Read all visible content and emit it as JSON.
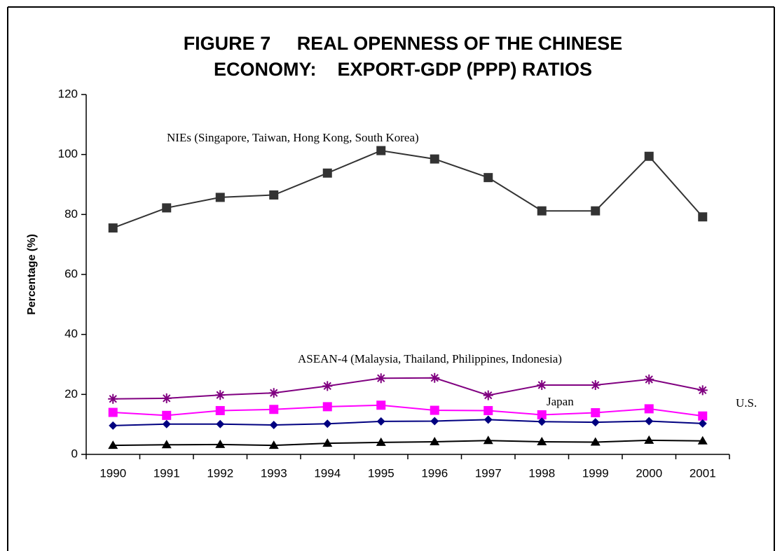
{
  "chart_data": {
    "type": "line",
    "title": [
      "FIGURE 7     REAL OPENNESS OF THE CHINESE",
      "ECONOMY:    EXPORT-GDP (PPP) RATIOS"
    ],
    "y_label": "Percentage (%)",
    "annotations": [
      "NIEs (Singapore, Taiwan, Hong Kong, South Korea)",
      "ASEAN-4 (Malaysia, Thailand, Philippines, Indonesia)",
      "Japan",
      "U.S."
    ],
    "categories": [
      "1990",
      "1991",
      "1992",
      "1993",
      "1994",
      "1995",
      "1996",
      "1997",
      "1998",
      "1999",
      "2000",
      "2001"
    ],
    "ylim": [
      0,
      120
    ],
    "yticks": [
      0,
      20,
      40,
      60,
      80,
      100,
      120
    ],
    "grid": false,
    "series": [
      {
        "color": "#333333",
        "marker": "square",
        "values": [
          75.5,
          82.2,
          85.7,
          86.5,
          93.8,
          101.3,
          98.5,
          92.3,
          81.2,
          81.2,
          99.4,
          79.2
        ]
      },
      {
        "color": "#800080",
        "marker": "star",
        "values": [
          18.5,
          18.7,
          19.8,
          20.5,
          22.8,
          25.4,
          25.5,
          19.7,
          23.1,
          23.1,
          25.0,
          21.4
        ]
      },
      {
        "color": "#ff00ff",
        "marker": "square",
        "values": [
          14.0,
          13.0,
          14.6,
          15.0,
          15.9,
          16.4,
          14.7,
          14.6,
          13.2,
          13.9,
          15.2,
          12.8
        ]
      },
      {
        "color": "#000080",
        "marker": "diamond",
        "values": [
          9.6,
          10.1,
          10.1,
          9.8,
          10.2,
          11.0,
          11.1,
          11.6,
          10.9,
          10.7,
          11.1,
          10.3
        ]
      },
      {
        "color": "#000000",
        "marker": "triangle",
        "values": [
          3.0,
          3.2,
          3.3,
          3.0,
          3.7,
          4.0,
          4.2,
          4.6,
          4.2,
          4.1,
          4.7,
          4.5
        ]
      }
    ]
  }
}
